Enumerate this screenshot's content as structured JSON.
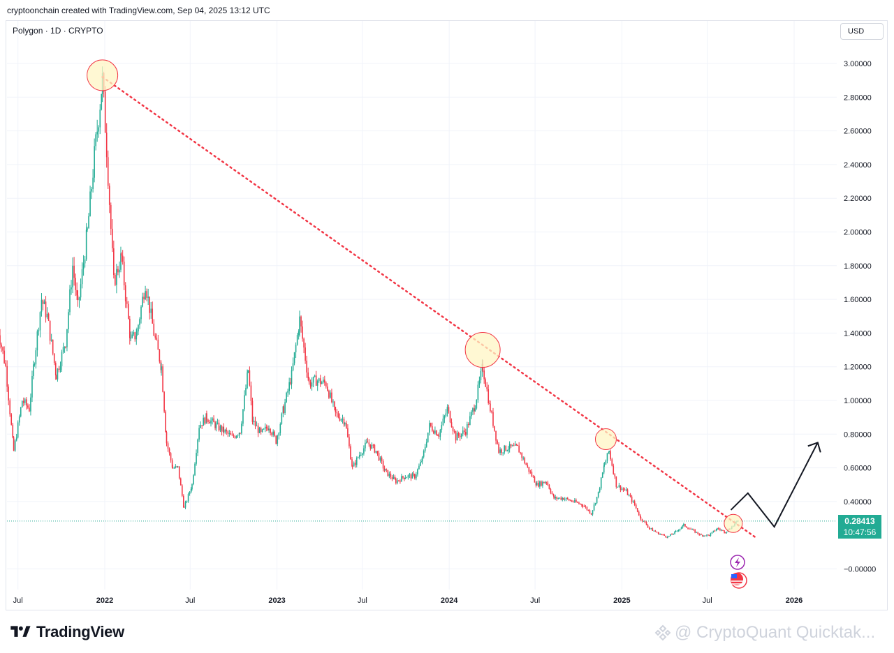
{
  "header": {
    "attribution": "cryptoonchain created with TradingView.com, Sep 04, 2025 13:12 UTC"
  },
  "symbol_line": "Polygon · 1D · CRYPTO",
  "currency_button": "USD",
  "price_tag": {
    "price": "0.28413",
    "countdown": "10:47:56"
  },
  "brand": {
    "name": "TradingView",
    "logo_icon": "tradingview-logo-icon"
  },
  "watermark": {
    "text": "@ CryptoQuant Quicktak...",
    "icon": "binance-square-icon"
  },
  "colors": {
    "up": "#22ab94",
    "down": "#f23645",
    "trendline": "#f23645",
    "highlight_fill": "#fff6c4",
    "highlight_stroke": "#f23645",
    "price_tag": "#22ab94"
  },
  "chart_data": {
    "type": "line",
    "title": "",
    "series_kind": "daily candlesticks (closing path approximated)",
    "ylim": [
      -0.05,
      3.12
    ],
    "y_ticks": [
      "3.00000",
      "2.80000",
      "2.60000",
      "2.40000",
      "2.20000",
      "2.00000",
      "1.80000",
      "1.60000",
      "1.40000",
      "1.20000",
      "1.00000",
      "0.80000",
      "0.60000",
      "0.40000",
      "−0.00000"
    ],
    "y_tick_values": [
      3.0,
      2.8,
      2.6,
      2.4,
      2.2,
      2.0,
      1.8,
      1.6,
      1.4,
      1.2,
      1.0,
      0.8,
      0.6,
      0.4,
      0.0
    ],
    "x_ticks": [
      {
        "label": "Jul",
        "date": "2021-07-01",
        "major": false
      },
      {
        "label": "2022",
        "date": "2022-01-01",
        "major": true
      },
      {
        "label": "Jul",
        "date": "2022-07-01",
        "major": false
      },
      {
        "label": "2023",
        "date": "2023-01-01",
        "major": true
      },
      {
        "label": "Jul",
        "date": "2023-07-01",
        "major": false
      },
      {
        "label": "2024",
        "date": "2024-01-01",
        "major": true
      },
      {
        "label": "Jul",
        "date": "2024-07-01",
        "major": false
      },
      {
        "label": "2025",
        "date": "2025-01-01",
        "major": true
      },
      {
        "label": "Jul",
        "date": "2025-07-01",
        "major": false
      },
      {
        "label": "2026",
        "date": "2026-01-01",
        "major": true
      }
    ],
    "series": [
      {
        "points": [
          [
            "2021-05-18",
            1.45
          ],
          [
            "2021-06-05",
            1.2
          ],
          [
            "2021-06-22",
            0.7
          ],
          [
            "2021-07-10",
            1.0
          ],
          [
            "2021-07-25",
            0.95
          ],
          [
            "2021-08-05",
            1.25
          ],
          [
            "2021-08-20",
            1.6
          ],
          [
            "2021-09-01",
            1.5
          ],
          [
            "2021-09-20",
            1.15
          ],
          [
            "2021-10-10",
            1.35
          ],
          [
            "2021-10-25",
            1.8
          ],
          [
            "2021-11-05",
            1.55
          ],
          [
            "2021-11-25",
            2.0
          ],
          [
            "2021-12-10",
            2.45
          ],
          [
            "2021-12-27",
            2.9
          ],
          [
            "2022-01-05",
            2.5
          ],
          [
            "2022-01-20",
            1.7
          ],
          [
            "2022-02-05",
            1.85
          ],
          [
            "2022-02-25",
            1.35
          ],
          [
            "2022-03-10",
            1.4
          ],
          [
            "2022-03-28",
            1.7
          ],
          [
            "2022-04-15",
            1.4
          ],
          [
            "2022-05-01",
            1.2
          ],
          [
            "2022-05-12",
            0.75
          ],
          [
            "2022-05-25",
            0.6
          ],
          [
            "2022-06-05",
            0.6
          ],
          [
            "2022-06-18",
            0.36
          ],
          [
            "2022-07-05",
            0.5
          ],
          [
            "2022-07-20",
            0.85
          ],
          [
            "2022-08-05",
            0.9
          ],
          [
            "2022-08-25",
            0.85
          ],
          [
            "2022-09-10",
            0.82
          ],
          [
            "2022-09-28",
            0.78
          ],
          [
            "2022-10-15",
            0.82
          ],
          [
            "2022-11-01",
            1.18
          ],
          [
            "2022-11-10",
            0.88
          ],
          [
            "2022-11-28",
            0.8
          ],
          [
            "2022-12-15",
            0.85
          ],
          [
            "2022-12-30",
            0.76
          ],
          [
            "2023-01-15",
            0.95
          ],
          [
            "2023-02-01",
            1.15
          ],
          [
            "2023-02-18",
            1.48
          ],
          [
            "2023-03-10",
            1.1
          ],
          [
            "2023-03-25",
            1.12
          ],
          [
            "2023-04-15",
            1.1
          ],
          [
            "2023-05-05",
            0.92
          ],
          [
            "2023-05-25",
            0.88
          ],
          [
            "2023-06-10",
            0.6
          ],
          [
            "2023-06-25",
            0.68
          ],
          [
            "2023-07-12",
            0.75
          ],
          [
            "2023-07-30",
            0.7
          ],
          [
            "2023-08-18",
            0.58
          ],
          [
            "2023-09-10",
            0.52
          ],
          [
            "2023-09-30",
            0.55
          ],
          [
            "2023-10-20",
            0.55
          ],
          [
            "2023-11-05",
            0.65
          ],
          [
            "2023-11-20",
            0.85
          ],
          [
            "2023-12-10",
            0.8
          ],
          [
            "2023-12-28",
            0.95
          ],
          [
            "2024-01-15",
            0.78
          ],
          [
            "2024-02-05",
            0.82
          ],
          [
            "2024-02-25",
            0.98
          ],
          [
            "2024-03-12",
            1.2
          ],
          [
            "2024-03-28",
            0.95
          ],
          [
            "2024-04-15",
            0.7
          ],
          [
            "2024-05-05",
            0.72
          ],
          [
            "2024-05-25",
            0.72
          ],
          [
            "2024-06-15",
            0.6
          ],
          [
            "2024-07-05",
            0.5
          ],
          [
            "2024-07-25",
            0.52
          ],
          [
            "2024-08-10",
            0.42
          ],
          [
            "2024-08-30",
            0.42
          ],
          [
            "2024-09-20",
            0.4
          ],
          [
            "2024-10-10",
            0.38
          ],
          [
            "2024-10-28",
            0.33
          ],
          [
            "2024-11-12",
            0.45
          ],
          [
            "2024-11-25",
            0.62
          ],
          [
            "2024-12-05",
            0.7
          ],
          [
            "2024-12-20",
            0.5
          ],
          [
            "2025-01-10",
            0.46
          ],
          [
            "2025-01-28",
            0.38
          ],
          [
            "2025-02-10",
            0.3
          ],
          [
            "2025-03-01",
            0.24
          ],
          [
            "2025-03-20",
            0.21
          ],
          [
            "2025-04-08",
            0.19
          ],
          [
            "2025-04-25",
            0.22
          ],
          [
            "2025-05-12",
            0.26
          ],
          [
            "2025-05-30",
            0.23
          ],
          [
            "2025-06-18",
            0.2
          ],
          [
            "2025-07-05",
            0.2
          ],
          [
            "2025-07-22",
            0.24
          ],
          [
            "2025-08-08",
            0.22
          ],
          [
            "2025-08-22",
            0.25
          ],
          [
            "2025-09-04",
            0.28413
          ]
        ]
      }
    ],
    "annotations": {
      "trendline": {
        "style": "dotted",
        "from": [
          "2021-12-27",
          2.92
        ],
        "to": [
          "2025-10-15",
          0.18
        ]
      },
      "circles": [
        {
          "date": "2021-12-27",
          "value": 2.93
        },
        {
          "date": "2024-03-12",
          "value": 1.3
        },
        {
          "date": "2024-11-28",
          "value": 0.77
        },
        {
          "date": "2025-08-25",
          "value": 0.27
        }
      ],
      "projection_path": [
        [
          "2025-08-20",
          0.35
        ],
        [
          "2025-09-25",
          0.45
        ],
        [
          "2025-11-20",
          0.25
        ],
        [
          "2026-02-20",
          0.75
        ]
      ],
      "last_price_line": 0.28413
    }
  }
}
